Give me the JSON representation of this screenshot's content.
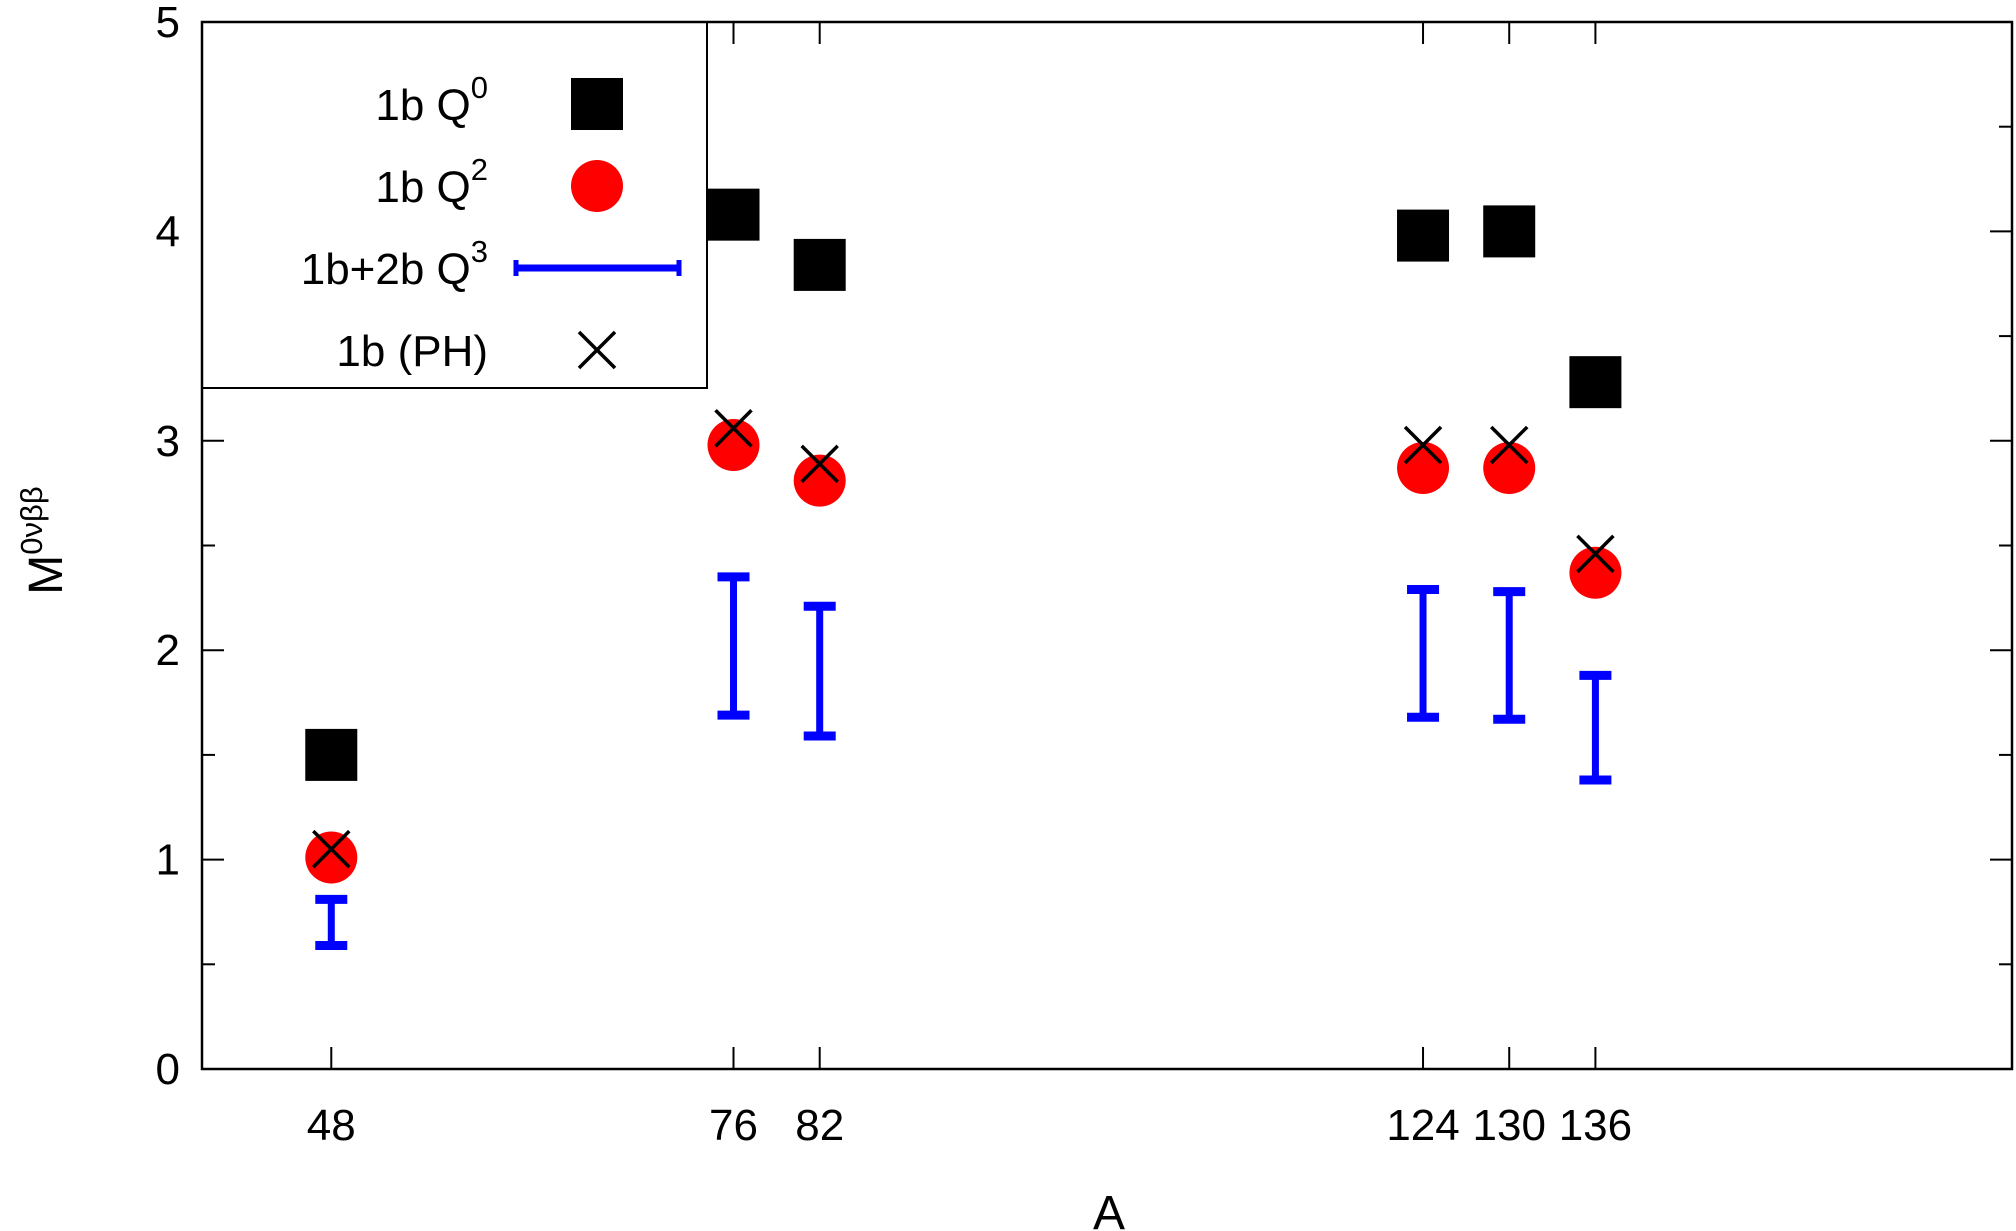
{
  "chart_data": {
    "type": "scatter",
    "xlabel": "A",
    "ylabel": {
      "base": "M",
      "superscript": "0νββ"
    },
    "xlim": [
      39,
      165
    ],
    "ylim": [
      0,
      5
    ],
    "x_ticks": [
      48,
      76,
      82,
      124,
      130,
      136
    ],
    "x_tick_labels": [
      "48",
      "76",
      "82",
      "124",
      "130",
      "136"
    ],
    "y_ticks": [
      0,
      1,
      2,
      3,
      4,
      5
    ],
    "y_tick_labels": [
      "0",
      "1",
      "2",
      "3",
      "4",
      "5"
    ],
    "grid": false,
    "legend_position": "top-left",
    "series": [
      {
        "name": "1b Q^0",
        "label_base": "1b Q",
        "label_sup": "0",
        "marker": "square",
        "color": "#000000",
        "points": [
          {
            "x": 48,
            "y": 1.5
          },
          {
            "x": 76,
            "y": 4.08
          },
          {
            "x": 82,
            "y": 3.84
          },
          {
            "x": 124,
            "y": 3.98
          },
          {
            "x": 130,
            "y": 4.0
          },
          {
            "x": 136,
            "y": 3.28
          }
        ]
      },
      {
        "name": "1b Q^2",
        "label_base": "1b Q",
        "label_sup": "2",
        "marker": "circle",
        "color": "#ff0000",
        "points": [
          {
            "x": 48,
            "y": 1.01
          },
          {
            "x": 76,
            "y": 2.98
          },
          {
            "x": 82,
            "y": 2.81
          },
          {
            "x": 124,
            "y": 2.87
          },
          {
            "x": 130,
            "y": 2.87
          },
          {
            "x": 136,
            "y": 2.37
          }
        ]
      },
      {
        "name": "1b+2b Q^3",
        "label_base": "1b+2b Q",
        "label_sup": "3",
        "marker": "range",
        "color": "#0000ff",
        "ranges": [
          {
            "x": 48,
            "low": 0.59,
            "high": 0.81
          },
          {
            "x": 76,
            "low": 1.69,
            "high": 2.35
          },
          {
            "x": 82,
            "low": 1.59,
            "high": 2.21
          },
          {
            "x": 124,
            "low": 1.68,
            "high": 2.29
          },
          {
            "x": 130,
            "low": 1.67,
            "high": 2.28
          },
          {
            "x": 136,
            "low": 1.38,
            "high": 1.88
          }
        ]
      },
      {
        "name": "1b (PH)",
        "label_base": "1b (PH)",
        "label_sup": "",
        "marker": "cross",
        "color": "#000000",
        "points": [
          {
            "x": 48,
            "y": 1.05
          },
          {
            "x": 76,
            "y": 3.06
          },
          {
            "x": 82,
            "y": 2.89
          },
          {
            "x": 124,
            "y": 2.98
          },
          {
            "x": 130,
            "y": 2.98
          },
          {
            "x": 136,
            "y": 2.46
          }
        ]
      }
    ]
  }
}
